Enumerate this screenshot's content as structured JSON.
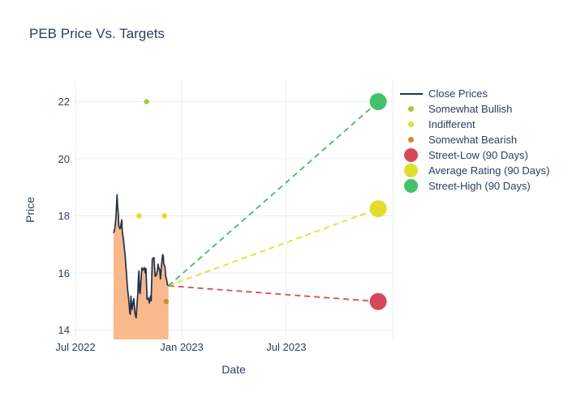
{
  "header": {
    "title": "PEB Price Vs. Targets"
  },
  "colors": {
    "text": "#2a3f5f",
    "grid": "#e7edf5",
    "close_line": "#20304c",
    "close_fill": "#f9b98c",
    "somewhat_bullish": "#a3cc39",
    "indifferent": "#dfdf2c",
    "somewhat_bearish": "#d08b2c",
    "street_low": "#d4485a",
    "average_rating": "#e0de2c",
    "street_high": "#45c06a"
  },
  "chart_data": {
    "type": "line",
    "title": "PEB Price Vs. Targets",
    "xlabel": "Date",
    "ylabel": "Price",
    "grid": true,
    "legend_position": "right",
    "x_range": [
      "2022-07-01",
      "2024-01-02"
    ],
    "y_range": [
      13.65,
      22.75
    ],
    "y_ticks": [
      14,
      16,
      18,
      20,
      22
    ],
    "x_tick_labels": [
      {
        "label": "Jul 2022",
        "date": "2022-07-01"
      },
      {
        "label": "Jan 2023",
        "date": "2023-01-01"
      },
      {
        "label": "Jul 2023",
        "date": "2023-07-01"
      }
    ],
    "x_gridline_dates": [
      "2022-07-01",
      "2023-01-01",
      "2023-07-01",
      "2024-01-01"
    ],
    "last_close": [
      "2022-12-09",
      15.55
    ],
    "series": [
      {
        "name": "Close Prices",
        "type": "line",
        "color": "#20304c",
        "fill": "tozeroy",
        "fill_color": "#f9b98c",
        "points": [
          [
            "2022-09-05",
            17.4
          ],
          [
            "2022-09-07",
            17.55
          ],
          [
            "2022-09-08",
            17.72
          ],
          [
            "2022-09-09",
            17.9
          ],
          [
            "2022-09-11",
            18.74
          ],
          [
            "2022-09-12",
            18.3
          ],
          [
            "2022-09-13",
            18.12
          ],
          [
            "2022-09-14",
            17.65
          ],
          [
            "2022-09-16",
            17.55
          ],
          [
            "2022-09-17",
            17.58
          ],
          [
            "2022-09-19",
            17.86
          ],
          [
            "2022-09-20",
            17.45
          ],
          [
            "2022-09-22",
            17.18
          ],
          [
            "2022-09-25",
            16.61
          ],
          [
            "2022-09-27",
            16.04
          ],
          [
            "2022-09-29",
            15.47
          ],
          [
            "2022-10-02",
            14.9
          ],
          [
            "2022-10-03",
            14.62
          ],
          [
            "2022-10-04",
            14.55
          ],
          [
            "2022-10-05",
            15.19
          ],
          [
            "2022-10-07",
            14.72
          ],
          [
            "2022-10-09",
            15.0
          ],
          [
            "2022-10-10",
            15.1
          ],
          [
            "2022-10-12",
            14.6
          ],
          [
            "2022-10-14",
            14.43
          ],
          [
            "2022-10-15",
            14.75
          ],
          [
            "2022-10-17",
            15.3
          ],
          [
            "2022-10-18",
            15.85
          ],
          [
            "2022-10-19",
            16.07
          ],
          [
            "2022-10-20",
            15.35
          ],
          [
            "2022-10-21",
            15.28
          ],
          [
            "2022-10-23",
            15.9
          ],
          [
            "2022-10-24",
            16.18
          ],
          [
            "2022-10-25",
            16.1
          ],
          [
            "2022-10-27",
            16.13
          ],
          [
            "2022-10-28",
            16.19
          ],
          [
            "2022-10-30",
            16.0
          ],
          [
            "2022-10-31",
            16.16
          ],
          [
            "2022-11-01",
            15.6
          ],
          [
            "2022-11-02",
            15.08
          ],
          [
            "2022-11-04",
            15.13
          ],
          [
            "2022-11-06",
            14.95
          ],
          [
            "2022-11-08",
            15.2
          ],
          [
            "2022-11-09",
            15.03
          ],
          [
            "2022-11-11",
            16.49
          ],
          [
            "2022-11-14",
            16.54
          ],
          [
            "2022-11-15",
            16.2
          ],
          [
            "2022-11-16",
            15.88
          ],
          [
            "2022-11-18",
            15.93
          ],
          [
            "2022-11-20",
            16.1
          ],
          [
            "2022-11-21",
            16.31
          ],
          [
            "2022-11-22",
            16.2
          ],
          [
            "2022-11-24",
            16.1
          ],
          [
            "2022-11-25",
            15.79
          ],
          [
            "2022-11-27",
            16.3
          ],
          [
            "2022-11-29",
            16.64
          ],
          [
            "2022-11-30",
            16.6
          ],
          [
            "2022-12-01",
            16.3
          ],
          [
            "2022-12-03",
            16.21
          ],
          [
            "2022-12-04",
            15.9
          ],
          [
            "2022-12-06",
            15.75
          ],
          [
            "2022-12-07",
            15.6
          ],
          [
            "2022-12-09",
            15.55
          ]
        ]
      },
      {
        "name": "Somewhat Bullish",
        "type": "scatter",
        "color": "#a3cc39",
        "points": [
          [
            "2022-11-01",
            22.0
          ]
        ]
      },
      {
        "name": "Indifferent",
        "type": "scatter",
        "color": "#dfdf2c",
        "points": [
          [
            "2022-10-19",
            18.0
          ],
          [
            "2022-12-02",
            18.0
          ]
        ]
      },
      {
        "name": "Somewhat Bearish",
        "type": "scatter",
        "color": "#d08b2c",
        "points": [
          [
            "2022-12-05",
            15.0
          ]
        ]
      },
      {
        "name": "Street-Low (90 Days)",
        "type": "target",
        "color": "#d4485a",
        "line_color": "#dd4a4e",
        "point": [
          "2023-12-07",
          15.0
        ]
      },
      {
        "name": "Average Rating (90 Days)",
        "type": "target",
        "color": "#e0de2c",
        "line_color": "#e4e02b",
        "point": [
          "2023-12-07",
          18.25
        ]
      },
      {
        "name": "Street-High (90 Days)",
        "type": "target",
        "color": "#45c06a",
        "line_color": "#3fbf62",
        "point": [
          "2023-12-07",
          22.0
        ]
      }
    ],
    "legend": [
      {
        "label": "Close Prices",
        "swatch": "line",
        "color": "#20304c"
      },
      {
        "label": "Somewhat Bullish",
        "swatch": "dot",
        "color": "#a3cc39"
      },
      {
        "label": "Indifferent",
        "swatch": "dot",
        "color": "#dfdf2c"
      },
      {
        "label": "Somewhat Bearish",
        "swatch": "dot",
        "color": "#d08b2c"
      },
      {
        "label": "Street-Low (90 Days)",
        "swatch": "bubble",
        "color": "#d4485a"
      },
      {
        "label": "Average Rating (90 Days)",
        "swatch": "bubble",
        "color": "#e0de2c"
      },
      {
        "label": "Street-High (90 Days)",
        "swatch": "bubble",
        "color": "#45c06a"
      }
    ]
  }
}
